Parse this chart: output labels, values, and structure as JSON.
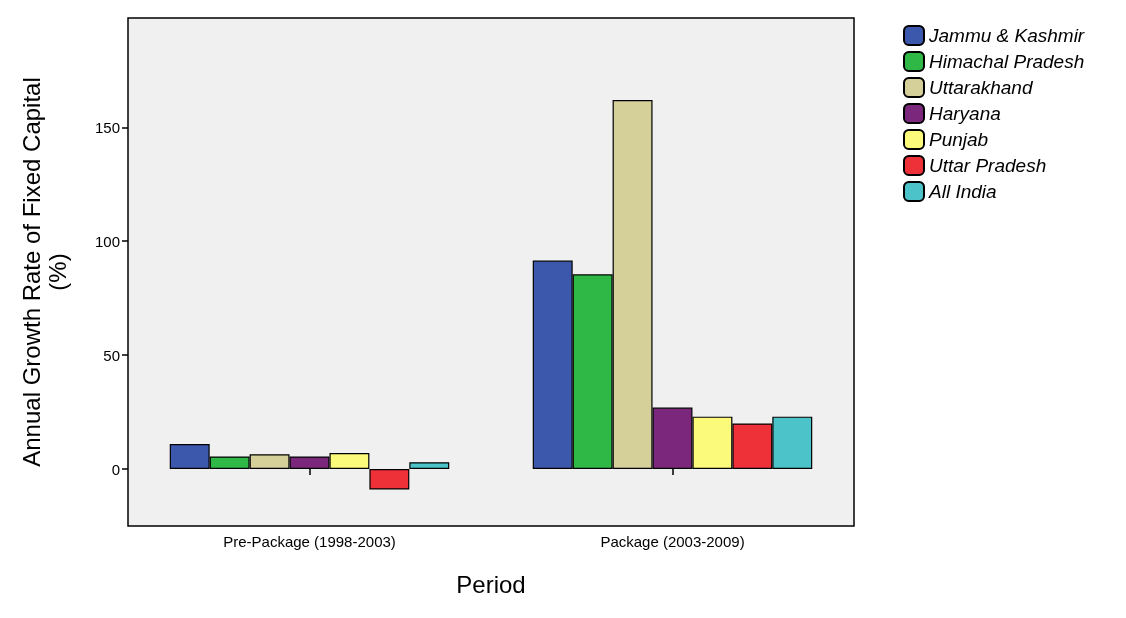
{
  "chart_data": {
    "type": "bar",
    "xlabel": "Period",
    "ylabel": "Annual Growth Rate of Fixed Capital\n(%)",
    "categories": [
      "Pre-Package (1998-2003)",
      "Package (2003-2009)"
    ],
    "series": [
      {
        "name": "Jammu & Kashmir",
        "color": "#3c58ad",
        "values": [
          11,
          91.5
        ]
      },
      {
        "name": "Himachal Pradesh",
        "color": "#2fb845",
        "values": [
          5.5,
          85.5
        ]
      },
      {
        "name": "Uttarakhand",
        "color": "#d5cf9a",
        "values": [
          6.5,
          162
        ]
      },
      {
        "name": "Haryana",
        "color": "#7b287c",
        "values": [
          5.5,
          27
        ]
      },
      {
        "name": "Punjab",
        "color": "#fbfa7b",
        "values": [
          7,
          23
        ]
      },
      {
        "name": "Uttar Pradesh",
        "color": "#ee3138",
        "values": [
          -9,
          20
        ]
      },
      {
        "name": "All India",
        "color": "#4bc3c8",
        "values": [
          3,
          23
        ]
      }
    ],
    "ylim": [
      -25,
      198
    ],
    "yticks": [
      0,
      50,
      100,
      150
    ],
    "grid": false,
    "legend": "top right"
  }
}
